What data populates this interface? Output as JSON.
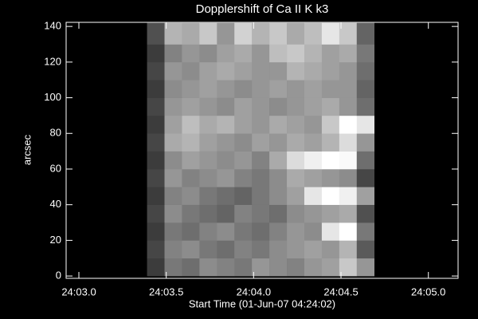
{
  "chart_data": {
    "type": "heatmap",
    "title": "Dopplershift of Ca II K k3",
    "xlabel": "Start Time (01-Jun-07 04:24:02)",
    "ylabel": "arcsec",
    "xlim": [
      2.927,
      5.17
    ],
    "ylim": [
      -1.3,
      142.3
    ],
    "xticks": [
      {
        "value": 3.0,
        "label": "24:03.0"
      },
      {
        "value": 3.5,
        "label": "24:03.5"
      },
      {
        "value": 4.0,
        "label": "24:04.0"
      },
      {
        "value": 4.5,
        "label": "24:04.5"
      },
      {
        "value": 5.0,
        "label": "24:05.0"
      }
    ],
    "yticks": [
      0,
      20,
      40,
      60,
      80,
      100,
      120,
      140
    ],
    "x_edges": [
      3.39,
      3.49,
      3.59,
      3.69,
      3.79,
      3.89,
      3.99,
      4.09,
      4.19,
      4.29,
      4.39,
      4.49,
      4.59,
      4.69
    ],
    "y_edges": [
      0,
      10,
      20,
      30,
      40,
      50,
      60,
      70,
      80,
      90,
      100,
      110,
      120,
      130,
      142
    ],
    "z": [
      [
        60,
        120,
        110,
        140,
        130,
        120,
        150,
        140,
        130,
        150,
        160,
        200,
        150
      ],
      [
        70,
        130,
        140,
        120,
        110,
        130,
        120,
        140,
        150,
        160,
        150,
        180,
        90
      ],
      [
        60,
        120,
        110,
        130,
        140,
        120,
        110,
        130,
        150,
        140,
        230,
        255,
        120
      ],
      [
        70,
        140,
        120,
        110,
        100,
        130,
        120,
        110,
        140,
        150,
        160,
        170,
        80
      ],
      [
        60,
        130,
        140,
        120,
        110,
        100,
        120,
        140,
        160,
        230,
        255,
        240,
        160
      ],
      [
        70,
        150,
        130,
        140,
        150,
        130,
        120,
        140,
        170,
        160,
        150,
        140,
        70
      ],
      [
        60,
        140,
        160,
        150,
        140,
        150,
        130,
        170,
        220,
        240,
        255,
        250,
        110
      ],
      [
        70,
        170,
        180,
        160,
        150,
        140,
        160,
        150,
        170,
        160,
        180,
        220,
        150
      ],
      [
        60,
        160,
        190,
        170,
        180,
        160,
        150,
        170,
        160,
        150,
        200,
        255,
        230
      ],
      [
        70,
        150,
        160,
        150,
        140,
        160,
        150,
        140,
        150,
        160,
        170,
        150,
        110
      ],
      [
        60,
        140,
        150,
        160,
        150,
        140,
        150,
        160,
        150,
        160,
        150,
        150,
        100
      ],
      [
        70,
        150,
        140,
        160,
        170,
        160,
        150,
        150,
        180,
        170,
        160,
        150,
        110
      ],
      [
        60,
        130,
        150,
        140,
        160,
        170,
        150,
        190,
        200,
        180,
        160,
        170,
        120
      ],
      [
        80,
        180,
        170,
        200,
        150,
        210,
        180,
        200,
        170,
        190,
        230,
        200,
        100
      ]
    ]
  }
}
